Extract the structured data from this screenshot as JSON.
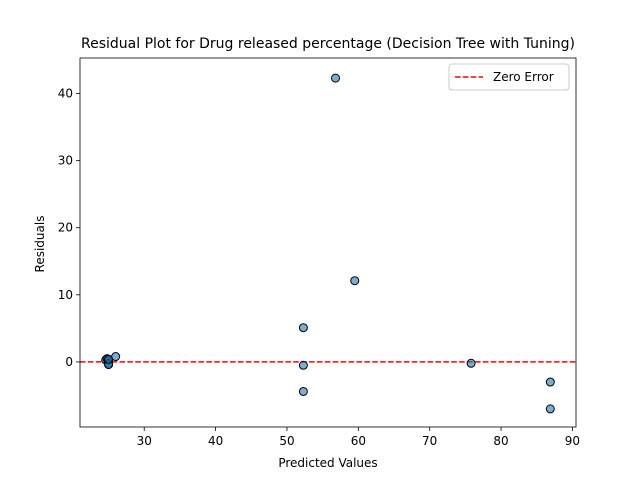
{
  "chart_data": {
    "type": "scatter",
    "title": "Residual Plot for Drug released percentage (Decision Tree with Tuning)",
    "xlabel": "Predicted Values",
    "ylabel": "Residuals",
    "xlim": [
      21,
      90.5
    ],
    "ylim": [
      -9.7,
      45.3
    ],
    "xticks": [
      30,
      40,
      50,
      60,
      70,
      80,
      90
    ],
    "yticks": [
      0,
      10,
      20,
      30,
      40
    ],
    "grid": false,
    "legend_position": "upper-right",
    "series": [
      {
        "type": "scatter",
        "color": "#1f77b4",
        "x": [
          24.6,
          24.8,
          25.0,
          25.0,
          25.0,
          25.0,
          26.0,
          52.3,
          52.3,
          52.3,
          56.8,
          59.5,
          75.8,
          86.9,
          86.9
        ],
        "y": [
          0.3,
          0.5,
          0.2,
          -0.2,
          -0.4,
          0.4,
          0.8,
          5.1,
          -0.5,
          -4.4,
          42.3,
          12.1,
          -0.2,
          -3.0,
          -7.0
        ]
      }
    ],
    "reference_line": {
      "label": "Zero Error",
      "y": 0,
      "color": "#ff0000",
      "style": "dashed"
    }
  }
}
